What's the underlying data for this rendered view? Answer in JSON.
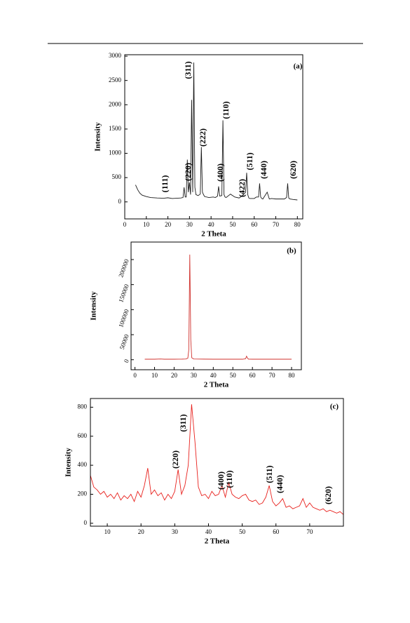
{
  "chart_data": [
    {
      "type": "line",
      "title": "(a)",
      "xlabel": "2 Theta",
      "ylabel": "Intensity",
      "xlim": [
        0,
        82.5
      ],
      "ylim": [
        -350,
        3030
      ],
      "xticks": [
        0,
        10,
        20,
        30,
        40,
        50,
        60,
        70,
        80
      ],
      "yticks": [
        0,
        500,
        1000,
        1500,
        2000,
        2500,
        3000
      ],
      "annotations": [
        "(111)",
        "(220)",
        "(311)",
        "(222)",
        "(400)",
        "(110)",
        "(422)",
        "(511)",
        "(440)",
        "(620)"
      ],
      "x": [
        5,
        6,
        7,
        8,
        10,
        12,
        15,
        18,
        20,
        22,
        24,
        26,
        27,
        27.5,
        28,
        28.5,
        29,
        29.5,
        30,
        30.5,
        31,
        31.5,
        32,
        32.5,
        33,
        34,
        35,
        35.5,
        36,
        36.5,
        37,
        39,
        41,
        42,
        43,
        43.5,
        44,
        45,
        45.5,
        46,
        46.5,
        47,
        49,
        51,
        53,
        54,
        55,
        56,
        56.5,
        57,
        57.5,
        58,
        60,
        61,
        62,
        62.5,
        63,
        63.5,
        64,
        66,
        67,
        68,
        70,
        72,
        74,
        75,
        75.5,
        76,
        76.5,
        78,
        80
      ],
      "series": [
        {
          "color": "#1a1a1a",
          "values": [
            350,
            250,
            180,
            140,
            110,
            90,
            80,
            75,
            85,
            70,
            75,
            80,
            90,
            300,
            100,
            100,
            870,
            200,
            400,
            150,
            2100,
            200,
            2870,
            300,
            150,
            130,
            160,
            1130,
            200,
            150,
            110,
            90,
            100,
            90,
            120,
            320,
            120,
            130,
            1680,
            150,
            100,
            90,
            160,
            100,
            80,
            110,
            150,
            200,
            600,
            150,
            80,
            70,
            70,
            100,
            100,
            380,
            100,
            70,
            60,
            200,
            60,
            70,
            60,
            60,
            60,
            90,
            380,
            80,
            60,
            50,
            40
          ]
        }
      ]
    },
    {
      "type": "line",
      "title": "(b)",
      "xlabel": "2 Theta",
      "ylabel": "Intensity",
      "xlim": [
        -2,
        85
      ],
      "ylim": [
        -20000,
        235000
      ],
      "xticks": [
        0,
        10,
        20,
        30,
        40,
        50,
        60,
        70,
        80
      ],
      "yticks": [
        0,
        50000,
        100000,
        150000,
        200000
      ],
      "x": [
        5,
        10,
        13,
        15,
        20,
        24,
        26,
        27,
        27.5,
        28,
        28.5,
        29,
        30,
        35,
        40,
        45,
        50,
        55,
        56.5,
        57,
        57.5,
        58,
        60,
        65,
        70,
        75,
        80
      ],
      "series": [
        {
          "color": "#d0312d",
          "values": [
            1000,
            1000,
            1500,
            1000,
            1000,
            1200,
            1500,
            3000,
            20000,
            210000,
            40000,
            4000,
            1500,
            1200,
            1000,
            1000,
            1000,
            1000,
            2000,
            7000,
            3000,
            1200,
            1000,
            1000,
            1000,
            1000,
            1000
          ]
        }
      ]
    },
    {
      "type": "line",
      "title": "(c)",
      "xlabel": "2 Theta",
      "ylabel": "Intensity",
      "xlim": [
        5,
        80
      ],
      "ylim": [
        -20,
        860
      ],
      "xticks": [
        10,
        20,
        30,
        40,
        50,
        60,
        70
      ],
      "yticks": [
        0,
        200,
        400,
        600,
        800
      ],
      "annotations": [
        "(220)",
        "(311)",
        "(400)",
        "(110)",
        "(511)",
        "(440)",
        "(620)"
      ],
      "x": [
        5,
        6,
        7,
        8,
        9,
        10,
        11,
        12,
        13,
        14,
        15,
        16,
        17,
        18,
        19,
        20,
        21,
        22,
        23,
        24,
        25,
        26,
        27,
        28,
        29,
        30,
        31,
        32,
        33,
        34,
        35,
        36,
        37,
        38,
        39,
        40,
        41,
        42,
        43,
        44,
        45,
        46,
        47,
        48,
        49,
        50,
        51,
        52,
        53,
        54,
        55,
        56,
        57,
        58,
        59,
        60,
        61,
        62,
        63,
        64,
        65,
        66,
        67,
        68,
        69,
        70,
        71,
        72,
        73,
        74,
        75,
        76,
        77,
        78,
        79,
        80
      ],
      "series": [
        {
          "color": "#e8201c",
          "values": [
            330,
            250,
            230,
            200,
            220,
            180,
            200,
            170,
            210,
            160,
            190,
            170,
            200,
            150,
            220,
            180,
            260,
            380,
            200,
            230,
            190,
            210,
            160,
            200,
            170,
            220,
            370,
            200,
            260,
            400,
            820,
            560,
            250,
            190,
            200,
            170,
            220,
            190,
            200,
            260,
            180,
            280,
            200,
            180,
            170,
            190,
            200,
            160,
            150,
            160,
            130,
            140,
            180,
            260,
            150,
            120,
            140,
            170,
            110,
            120,
            100,
            110,
            120,
            170,
            110,
            140,
            110,
            100,
            90,
            100,
            80,
            90,
            80,
            70,
            80,
            60
          ]
        }
      ]
    }
  ]
}
